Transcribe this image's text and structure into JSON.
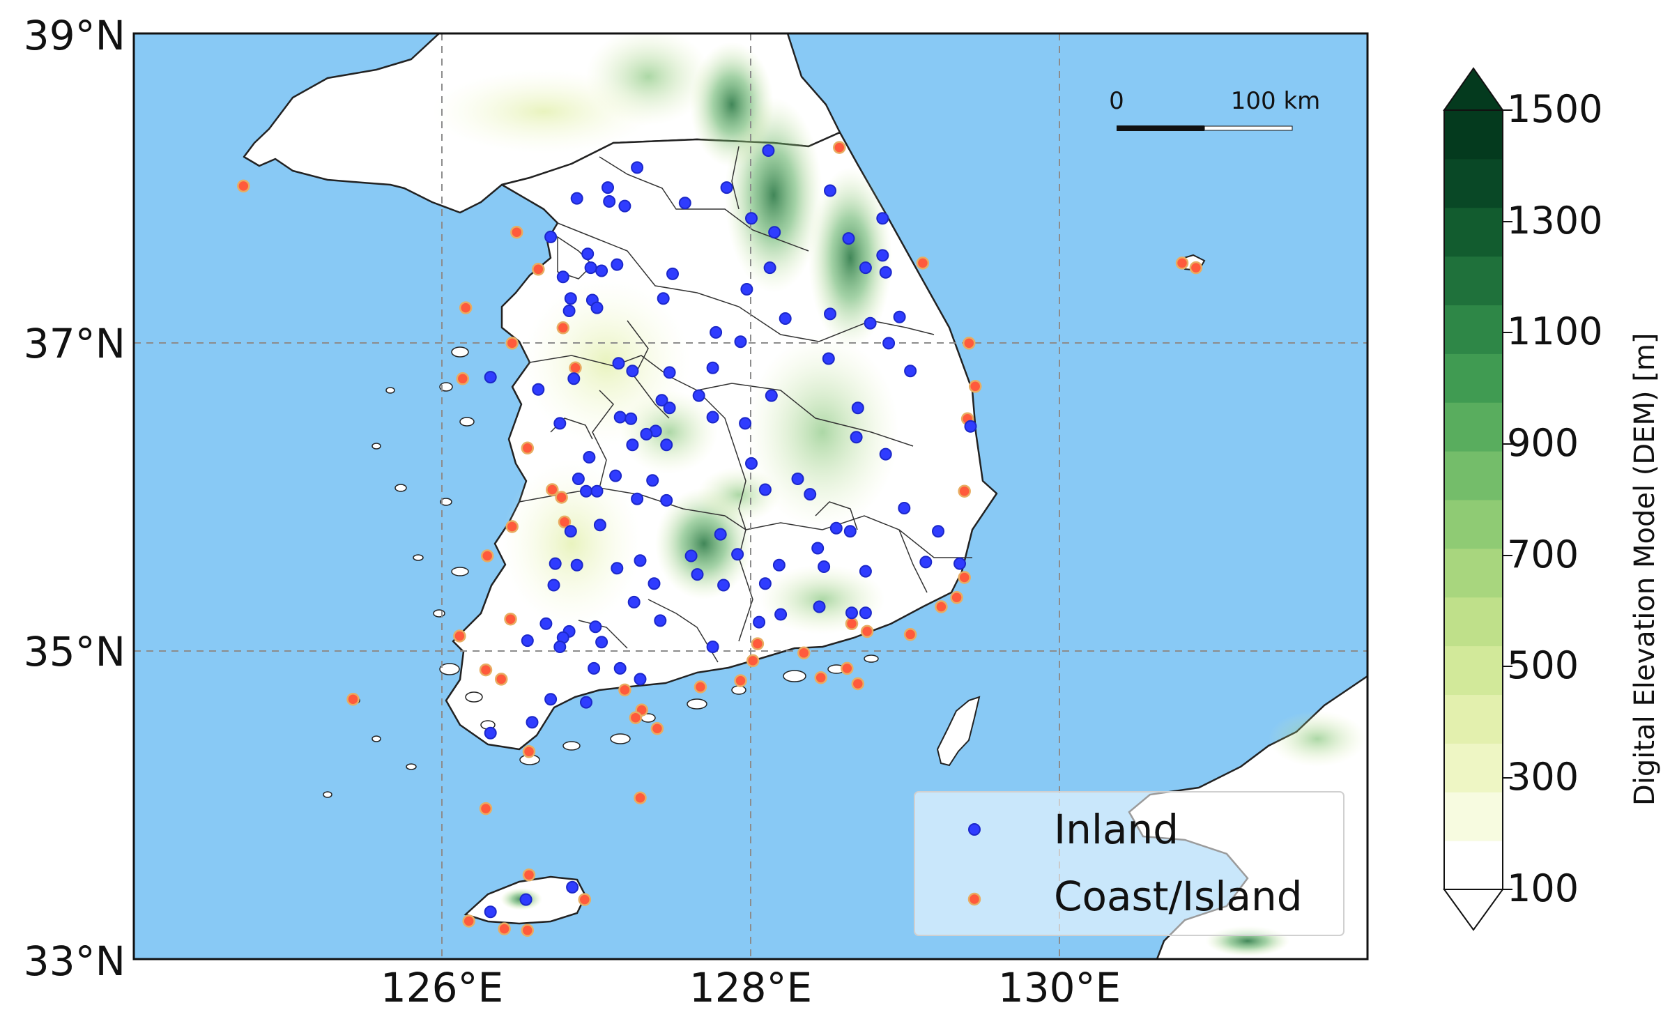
{
  "map": {
    "lat_labels": [
      "39°N",
      "37°N",
      "35°N",
      "33°N"
    ],
    "lon_labels": [
      "126°E",
      "128°E",
      "130°E"
    ],
    "scale_bar": {
      "start_label": "0",
      "end_label": "100 km"
    }
  },
  "legend": {
    "inland_label": "Inland",
    "coast_label": "Coast/Island"
  },
  "colorbar": {
    "title": "Digital Elevation Model (DEM) [m]",
    "ticks": [
      "1500",
      "1300",
      "1100",
      "900",
      "700",
      "500",
      "300",
      "100"
    ],
    "colors": [
      "#ffffff",
      "#f7fbe0",
      "#eef6c4",
      "#e3f0ae",
      "#d2e99a",
      "#bfe08a",
      "#a8d67e",
      "#8fcb74",
      "#74bd6a",
      "#59ad5e",
      "#409b52",
      "#2e8747",
      "#1f713b",
      "#125c2f",
      "#094826",
      "#043a1e"
    ]
  },
  "colors": {
    "sea": "#88c9f5",
    "land": "#ffffff",
    "inland_marker": "#2f3cff",
    "coast_marker": "#ff5a3c",
    "coast_marker_edge": "#e8ad62"
  },
  "stations": {
    "inland": [
      [
        127.26,
        38.13
      ],
      [
        128.11,
        38.24
      ],
      [
        126.87,
        37.93
      ],
      [
        127.07,
        38.0
      ],
      [
        127.57,
        37.9
      ],
      [
        127.84,
        38.0
      ],
      [
        127.18,
        37.88
      ],
      [
        127.08,
        37.91
      ],
      [
        128.0,
        37.8
      ],
      [
        128.51,
        37.98
      ],
      [
        128.85,
        37.8
      ],
      [
        126.7,
        37.68
      ],
      [
        126.78,
        37.42
      ],
      [
        126.94,
        37.57
      ],
      [
        127.13,
        37.5
      ],
      [
        126.96,
        37.48
      ],
      [
        127.03,
        37.46
      ],
      [
        127.49,
        37.44
      ],
      [
        128.15,
        37.71
      ],
      [
        128.63,
        37.67
      ],
      [
        128.85,
        37.56
      ],
      [
        128.87,
        37.45
      ],
      [
        128.74,
        37.48
      ],
      [
        128.12,
        37.48
      ],
      [
        127.97,
        37.34
      ],
      [
        126.82,
        37.2
      ],
      [
        126.83,
        37.28
      ],
      [
        126.97,
        37.27
      ],
      [
        127.43,
        37.28
      ],
      [
        128.51,
        37.18
      ],
      [
        128.77,
        37.12
      ],
      [
        128.96,
        37.16
      ],
      [
        128.22,
        37.15
      ],
      [
        127.0,
        37.22
      ],
      [
        127.77,
        37.06
      ],
      [
        127.93,
        37.0
      ],
      [
        128.89,
        36.99
      ],
      [
        127.14,
        36.86
      ],
      [
        126.31,
        36.77
      ],
      [
        126.62,
        36.69
      ],
      [
        126.85,
        36.76
      ],
      [
        127.47,
        36.8
      ],
      [
        127.23,
        36.81
      ],
      [
        127.75,
        36.83
      ],
      [
        128.5,
        36.89
      ],
      [
        129.03,
        36.81
      ],
      [
        127.15,
        36.51
      ],
      [
        126.76,
        36.47
      ],
      [
        127.22,
        36.5
      ],
      [
        127.38,
        36.42
      ],
      [
        127.45,
        36.33
      ],
      [
        127.42,
        36.62
      ],
      [
        127.47,
        36.57
      ],
      [
        127.66,
        36.65
      ],
      [
        127.75,
        36.51
      ],
      [
        127.96,
        36.47
      ],
      [
        128.13,
        36.65
      ],
      [
        128.69,
        36.57
      ],
      [
        128.68,
        36.38
      ],
      [
        128.87,
        36.27
      ],
      [
        129.42,
        36.45
      ],
      [
        126.88,
        36.11
      ],
      [
        126.95,
        36.25
      ],
      [
        127.12,
        36.13
      ],
      [
        127.23,
        36.33
      ],
      [
        127.32,
        36.4
      ],
      [
        126.93,
        36.03
      ],
      [
        127.0,
        36.03
      ],
      [
        127.36,
        36.1
      ],
      [
        128.0,
        36.21
      ],
      [
        128.09,
        36.04
      ],
      [
        128.3,
        36.11
      ],
      [
        128.38,
        36.01
      ],
      [
        127.26,
        35.98
      ],
      [
        127.45,
        35.97
      ],
      [
        126.83,
        35.77
      ],
      [
        127.02,
        35.81
      ],
      [
        126.73,
        35.56
      ],
      [
        126.87,
        35.55
      ],
      [
        127.13,
        35.53
      ],
      [
        127.28,
        35.58
      ],
      [
        127.37,
        35.43
      ],
      [
        127.61,
        35.61
      ],
      [
        127.8,
        35.75
      ],
      [
        127.65,
        35.49
      ],
      [
        127.82,
        35.42
      ],
      [
        127.91,
        35.62
      ],
      [
        128.09,
        35.43
      ],
      [
        128.18,
        35.55
      ],
      [
        128.43,
        35.66
      ],
      [
        128.47,
        35.54
      ],
      [
        128.55,
        35.79
      ],
      [
        128.64,
        35.77
      ],
      [
        128.74,
        35.51
      ],
      [
        128.99,
        35.92
      ],
      [
        129.13,
        35.57
      ],
      [
        129.21,
        35.77
      ],
      [
        129.35,
        35.56
      ],
      [
        126.72,
        35.42
      ],
      [
        127.24,
        35.31
      ],
      [
        127.41,
        35.19
      ],
      [
        126.67,
        35.17
      ],
      [
        126.82,
        35.12
      ],
      [
        126.78,
        35.08
      ],
      [
        127.03,
        35.05
      ],
      [
        126.99,
        35.15
      ],
      [
        126.55,
        35.06
      ],
      [
        126.76,
        35.02
      ],
      [
        126.98,
        34.88
      ],
      [
        127.15,
        34.88
      ],
      [
        127.28,
        34.81
      ],
      [
        127.75,
        35.02
      ],
      [
        128.05,
        35.18
      ],
      [
        128.19,
        35.23
      ],
      [
        128.44,
        35.28
      ],
      [
        128.65,
        35.24
      ],
      [
        128.74,
        35.24
      ],
      [
        126.7,
        34.68
      ],
      [
        126.93,
        34.66
      ],
      [
        126.58,
        34.53
      ],
      [
        126.31,
        34.46
      ],
      [
        126.54,
        33.38
      ],
      [
        126.84,
        33.46
      ],
      [
        126.31,
        33.3
      ]
    ],
    "coast": [
      [
        124.71,
        38.01
      ],
      [
        128.57,
        38.26
      ],
      [
        126.48,
        37.71
      ],
      [
        126.62,
        37.47
      ],
      [
        129.11,
        37.51
      ],
      [
        130.88,
        37.48
      ],
      [
        130.79,
        37.51
      ],
      [
        126.15,
        37.22
      ],
      [
        126.78,
        37.09
      ],
      [
        126.45,
        36.99
      ],
      [
        129.41,
        36.99
      ],
      [
        126.86,
        36.83
      ],
      [
        126.13,
        36.76
      ],
      [
        129.45,
        36.71
      ],
      [
        129.4,
        36.5
      ],
      [
        126.55,
        36.31
      ],
      [
        129.38,
        36.03
      ],
      [
        126.71,
        36.04
      ],
      [
        126.77,
        35.99
      ],
      [
        126.79,
        35.83
      ],
      [
        126.45,
        35.8
      ],
      [
        126.29,
        35.61
      ],
      [
        129.38,
        35.47
      ],
      [
        129.33,
        35.34
      ],
      [
        129.23,
        35.28
      ],
      [
        126.44,
        35.2
      ],
      [
        128.65,
        35.17
      ],
      [
        128.75,
        35.12
      ],
      [
        129.03,
        35.1
      ],
      [
        126.11,
        35.09
      ],
      [
        128.04,
        35.04
      ],
      [
        126.28,
        34.87
      ],
      [
        126.38,
        34.81
      ],
      [
        128.01,
        34.93
      ],
      [
        128.34,
        34.98
      ],
      [
        128.62,
        34.88
      ],
      [
        128.45,
        34.82
      ],
      [
        127.67,
        34.76
      ],
      [
        127.93,
        34.8
      ],
      [
        128.69,
        34.78
      ],
      [
        127.18,
        34.74
      ],
      [
        127.29,
        34.61
      ],
      [
        127.25,
        34.56
      ],
      [
        127.39,
        34.49
      ],
      [
        125.42,
        34.68
      ],
      [
        126.56,
        34.34
      ],
      [
        126.28,
        33.97
      ],
      [
        127.28,
        34.04
      ],
      [
        126.56,
        33.54
      ],
      [
        126.92,
        33.38
      ],
      [
        126.17,
        33.24
      ],
      [
        126.4,
        33.19
      ],
      [
        126.55,
        33.18
      ]
    ]
  }
}
